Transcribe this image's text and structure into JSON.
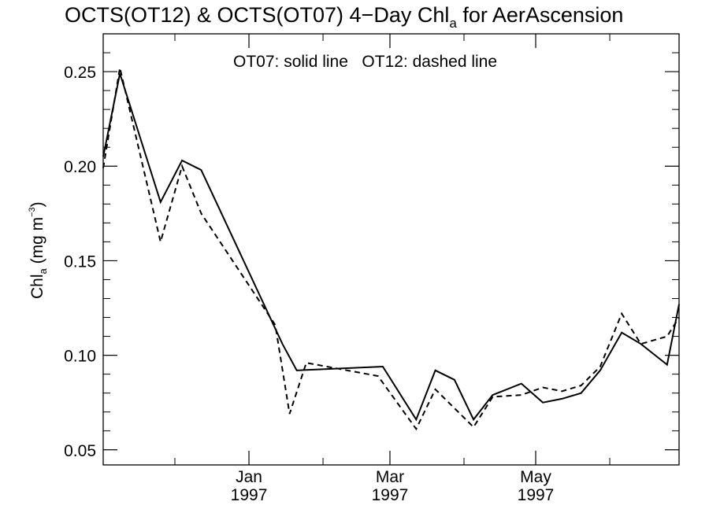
{
  "chart_data": {
    "type": "line",
    "title": "OCTS(OT12) & OCTS(OT07) 4−Day Chl",
    "title_sub": "a",
    "title_rest": " for AerAscension",
    "ylabel": "Chl",
    "ylabel_sub": "a",
    "ylabel_units": " (mg m",
    "ylabel_sup": "−3",
    "ylabel_close": ")",
    "annotation": "OT07: solid line   OT12: dashed line",
    "ylim": [
      0.042,
      0.27
    ],
    "xlim": [
      "1996-11-01",
      "1997-06-30"
    ],
    "y_ticks": [
      {
        "value": 0.05,
        "label": "0.05"
      },
      {
        "value": 0.1,
        "label": "0.10"
      },
      {
        "value": 0.15,
        "label": "0.15"
      },
      {
        "value": 0.2,
        "label": "0.20"
      },
      {
        "value": 0.25,
        "label": "0.25"
      }
    ],
    "x_major_ticks": [
      {
        "date": "1997-01-01",
        "month": "Jan",
        "year": "1997"
      },
      {
        "date": "1997-03-01",
        "month": "Mar",
        "year": "1997"
      },
      {
        "date": "1997-05-01",
        "month": "May",
        "year": "1997"
      }
    ],
    "x_minor_ticks": [
      "1996-12-01",
      "1997-02-01",
      "1997-04-01",
      "1997-06-01"
    ],
    "series": [
      {
        "style": "solid",
        "points": [
          [
            "1996-11-01",
            0.205
          ],
          [
            "1996-11-08",
            0.249
          ],
          [
            "1996-11-25",
            0.181
          ],
          [
            "1996-12-04",
            0.203
          ],
          [
            "1996-12-12",
            0.198
          ],
          [
            "1997-01-15",
            0.106
          ],
          [
            "1997-01-21",
            0.092
          ],
          [
            "1997-02-26",
            0.094
          ],
          [
            "1997-03-12",
            0.066
          ],
          [
            "1997-03-20",
            0.092
          ],
          [
            "1997-03-28",
            0.087
          ],
          [
            "1997-04-05",
            0.066
          ],
          [
            "1997-04-13",
            0.079
          ],
          [
            "1997-04-25",
            0.085
          ],
          [
            "1997-05-04",
            0.075
          ],
          [
            "1997-05-12",
            0.077
          ],
          [
            "1997-05-20",
            0.08
          ],
          [
            "1997-05-28",
            0.092
          ],
          [
            "1997-06-06",
            0.112
          ],
          [
            "1997-06-14",
            0.106
          ],
          [
            "1997-06-25",
            0.095
          ],
          [
            "1997-06-30",
            0.127
          ]
        ]
      },
      {
        "style": "dashed",
        "points": [
          [
            "1996-11-01",
            0.199
          ],
          [
            "1996-11-08",
            0.252
          ],
          [
            "1996-11-25",
            0.16
          ],
          [
            "1996-12-04",
            0.2
          ],
          [
            "1996-12-12",
            0.175
          ],
          [
            "1997-01-12",
            0.116
          ],
          [
            "1997-01-18",
            0.069
          ],
          [
            "1997-01-25",
            0.096
          ],
          [
            "1997-02-24",
            0.089
          ],
          [
            "1997-03-12",
            0.061
          ],
          [
            "1997-03-20",
            0.082
          ],
          [
            "1997-04-05",
            0.062
          ],
          [
            "1997-04-13",
            0.078
          ],
          [
            "1997-04-25",
            0.079
          ],
          [
            "1997-05-04",
            0.083
          ],
          [
            "1997-05-12",
            0.081
          ],
          [
            "1997-05-20",
            0.084
          ],
          [
            "1997-05-28",
            0.094
          ],
          [
            "1997-06-06",
            0.122
          ],
          [
            "1997-06-14",
            0.106
          ],
          [
            "1997-06-25",
            0.11
          ],
          [
            "1997-06-30",
            0.12
          ]
        ]
      }
    ]
  }
}
